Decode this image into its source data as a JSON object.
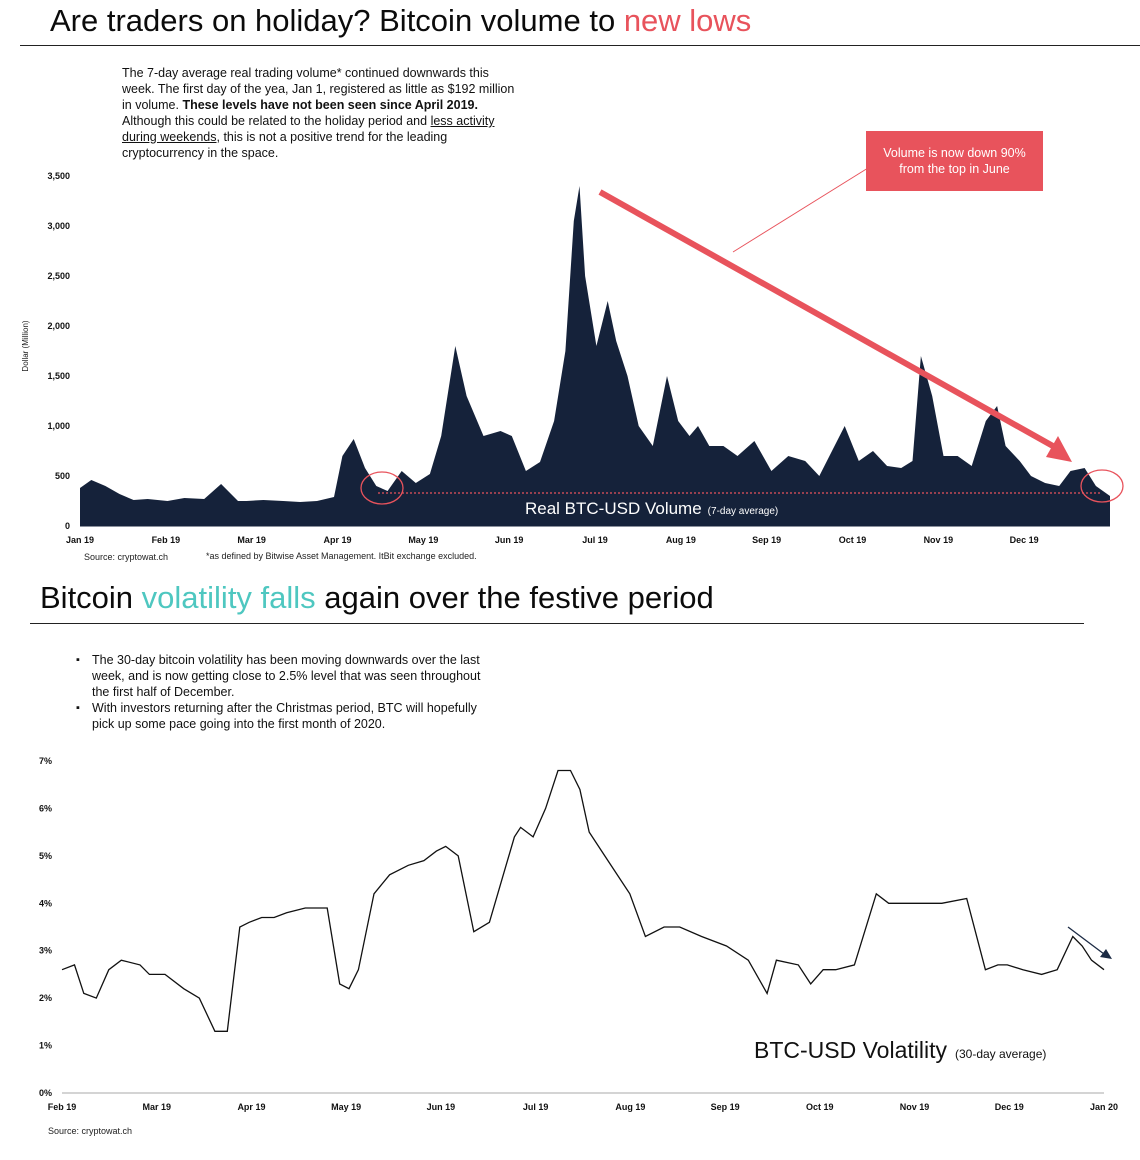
{
  "volume_section": {
    "title_part1": "Are traders on holiday? Bitcoin volume to ",
    "title_accent": "new lows",
    "blurb": {
      "line1": "The 7-day average real trading volume* continued downwards this",
      "line2": "week. The first day of the yea, Jan 1, registered as little as $192 million",
      "line3": "in volume. ",
      "line3_bold": "These levels have not been seen since April 2019.",
      "line4": "Although this could be related to the holiday period and ",
      "line4_link": "less activity",
      "line5_link": "during weekends",
      "line5": ", this is not a positive trend for the leading",
      "line6": "cryptocurrency in the space."
    },
    "callout": "Volume is now down 90% from the top in June",
    "chart_label": "Real BTC-USD Volume",
    "chart_label_note": "(7-day average)",
    "source": "Source: cryptowat.ch",
    "footnote": "*as defined by Bitwise Asset Management. ItBit exchange excluded.",
    "colors": {
      "fill": "#15223a",
      "accent": "#e8535c"
    }
  },
  "volatility_section": {
    "title_part1": "Bitcoin ",
    "title_accent": "volatility falls",
    "title_part2": " again over the festive period",
    "bullets": [
      "The 30-day bitcoin volatility has been moving downwards over the last week, and is now getting close to 2.5% level that was seen throughout the first half of December.",
      "With investors returning after the Christmas period, BTC will hopefully pick up some pace going into the first month of 2020."
    ],
    "chart_label": "BTC-USD Volatility",
    "chart_label_note": "(30-day average)",
    "source": "Source: cryptowat.ch",
    "colors": {
      "line": "#111111",
      "accent": "#4ec7c0",
      "arrow": "#1b2a44"
    }
  },
  "chart_data": [
    {
      "type": "area",
      "ylabel": "Dollar (Million)",
      "ylim": [
        0,
        3500
      ],
      "yticks": [
        0,
        500,
        1000,
        1500,
        2000,
        2500,
        3000,
        3500
      ],
      "ytick_labels": [
        "0",
        "500",
        "1,000",
        "1,500",
        "2,000",
        "2,500",
        "3,000",
        "3,500"
      ],
      "xtick_labels": [
        "Jan 19",
        "Feb 19",
        "Mar 19",
        "Apr 19",
        "May 19",
        "Jun 19",
        "Jul 19",
        "Aug 19",
        "Sep 19",
        "Oct 19",
        "Nov 19",
        "Dec 19"
      ],
      "x_range": [
        "2019-01-01",
        "2020-01-01"
      ],
      "threshold_line": 330,
      "series": [
        {
          "x": [
            "2019-01-01",
            "2019-01-05",
            "2019-01-10",
            "2019-01-15",
            "2019-01-20",
            "2019-01-25",
            "2019-02-01",
            "2019-02-07",
            "2019-02-14",
            "2019-02-20",
            "2019-02-26",
            "2019-03-01",
            "2019-03-07",
            "2019-03-14",
            "2019-03-20",
            "2019-03-26",
            "2019-04-01",
            "2019-04-04",
            "2019-04-08",
            "2019-04-12",
            "2019-04-16",
            "2019-04-20",
            "2019-04-25",
            "2019-04-30",
            "2019-05-05",
            "2019-05-09",
            "2019-05-14",
            "2019-05-18",
            "2019-05-24",
            "2019-05-30",
            "2019-06-03",
            "2019-06-08",
            "2019-06-13",
            "2019-06-18",
            "2019-06-22",
            "2019-06-25",
            "2019-06-27",
            "2019-06-29",
            "2019-07-03",
            "2019-07-07",
            "2019-07-10",
            "2019-07-14",
            "2019-07-18",
            "2019-07-23",
            "2019-07-28",
            "2019-08-01",
            "2019-08-05",
            "2019-08-08",
            "2019-08-12",
            "2019-08-17",
            "2019-08-22",
            "2019-08-28",
            "2019-09-03",
            "2019-09-09",
            "2019-09-15",
            "2019-09-20",
            "2019-09-25",
            "2019-09-29",
            "2019-10-04",
            "2019-10-09",
            "2019-10-14",
            "2019-10-19",
            "2019-10-23",
            "2019-10-26",
            "2019-10-30",
            "2019-11-03",
            "2019-11-08",
            "2019-11-13",
            "2019-11-18",
            "2019-11-22",
            "2019-11-25",
            "2019-11-30",
            "2019-12-04",
            "2019-12-09",
            "2019-12-14",
            "2019-12-18",
            "2019-12-23",
            "2019-12-27",
            "2020-01-01"
          ],
          "values": [
            380,
            460,
            400,
            320,
            260,
            270,
            250,
            280,
            270,
            420,
            250,
            250,
            260,
            250,
            240,
            250,
            290,
            700,
            870,
            580,
            400,
            350,
            550,
            430,
            520,
            900,
            1800,
            1300,
            900,
            950,
            900,
            550,
            640,
            1050,
            1750,
            3050,
            3400,
            2500,
            1800,
            2250,
            1850,
            1500,
            1000,
            800,
            1500,
            1050,
            900,
            1000,
            800,
            800,
            700,
            850,
            550,
            700,
            650,
            500,
            780,
            1000,
            650,
            750,
            600,
            580,
            650,
            1700,
            1300,
            700,
            700,
            600,
            1050,
            1200,
            800,
            650,
            500,
            430,
            400,
            550,
            580,
            400,
            300
          ]
        }
      ]
    },
    {
      "type": "line",
      "ylim": [
        0,
        7
      ],
      "yticks": [
        0,
        1,
        2,
        3,
        4,
        5,
        6,
        7
      ],
      "ytick_labels": [
        "0%",
        "1%",
        "2%",
        "3%",
        "4%",
        "5%",
        "6%",
        "7%"
      ],
      "xtick_labels": [
        "Feb 19",
        "Mar 19",
        "Apr 19",
        "May 19",
        "Jun 19",
        "Jul 19",
        "Aug 19",
        "Sep 19",
        "Oct 19",
        "Nov 19",
        "Dec 19",
        "Jan 20"
      ],
      "x_range": [
        "2019-02-01",
        "2020-01-01"
      ],
      "series": [
        {
          "x": [
            "2019-02-01",
            "2019-02-05",
            "2019-02-08",
            "2019-02-12",
            "2019-02-16",
            "2019-02-20",
            "2019-02-26",
            "2019-03-01",
            "2019-03-06",
            "2019-03-12",
            "2019-03-17",
            "2019-03-22",
            "2019-03-26",
            "2019-03-30",
            "2019-04-02",
            "2019-04-06",
            "2019-04-10",
            "2019-04-14",
            "2019-04-20",
            "2019-04-27",
            "2019-05-01",
            "2019-05-04",
            "2019-05-07",
            "2019-05-12",
            "2019-05-17",
            "2019-05-23",
            "2019-05-28",
            "2019-06-01",
            "2019-06-04",
            "2019-06-08",
            "2019-06-13",
            "2019-06-18",
            "2019-06-22",
            "2019-06-26",
            "2019-06-28",
            "2019-07-02",
            "2019-07-06",
            "2019-07-10",
            "2019-07-14",
            "2019-07-17",
            "2019-07-20",
            "2019-07-25",
            "2019-08-02",
            "2019-08-07",
            "2019-08-13",
            "2019-08-18",
            "2019-08-25",
            "2019-09-02",
            "2019-09-09",
            "2019-09-15",
            "2019-09-18",
            "2019-09-25",
            "2019-09-29",
            "2019-10-03",
            "2019-10-07",
            "2019-10-13",
            "2019-10-20",
            "2019-10-24",
            "2019-10-27",
            "2019-11-01",
            "2019-11-10",
            "2019-11-18",
            "2019-11-24",
            "2019-11-28",
            "2019-12-01",
            "2019-12-06",
            "2019-12-12",
            "2019-12-17",
            "2019-12-22",
            "2019-12-25",
            "2019-12-28",
            "2020-01-01"
          ],
          "values": [
            2.6,
            2.7,
            2.1,
            2.0,
            2.6,
            2.8,
            2.7,
            2.5,
            2.5,
            2.2,
            2.0,
            1.3,
            1.3,
            3.5,
            3.6,
            3.7,
            3.7,
            3.8,
            3.9,
            3.9,
            2.3,
            2.2,
            2.6,
            4.2,
            4.6,
            4.8,
            4.9,
            5.1,
            5.2,
            5.0,
            3.4,
            3.6,
            4.5,
            5.4,
            5.6,
            5.4,
            6.0,
            6.8,
            6.8,
            6.4,
            5.5,
            5.0,
            4.2,
            3.3,
            3.5,
            3.5,
            3.3,
            3.1,
            2.8,
            2.1,
            2.8,
            2.7,
            2.3,
            2.6,
            2.6,
            2.7,
            4.2,
            4.0,
            4.0,
            4.0,
            4.0,
            4.1,
            2.6,
            2.7,
            2.7,
            2.6,
            2.5,
            2.6,
            3.3,
            3.1,
            2.8,
            2.6
          ]
        }
      ]
    }
  ]
}
